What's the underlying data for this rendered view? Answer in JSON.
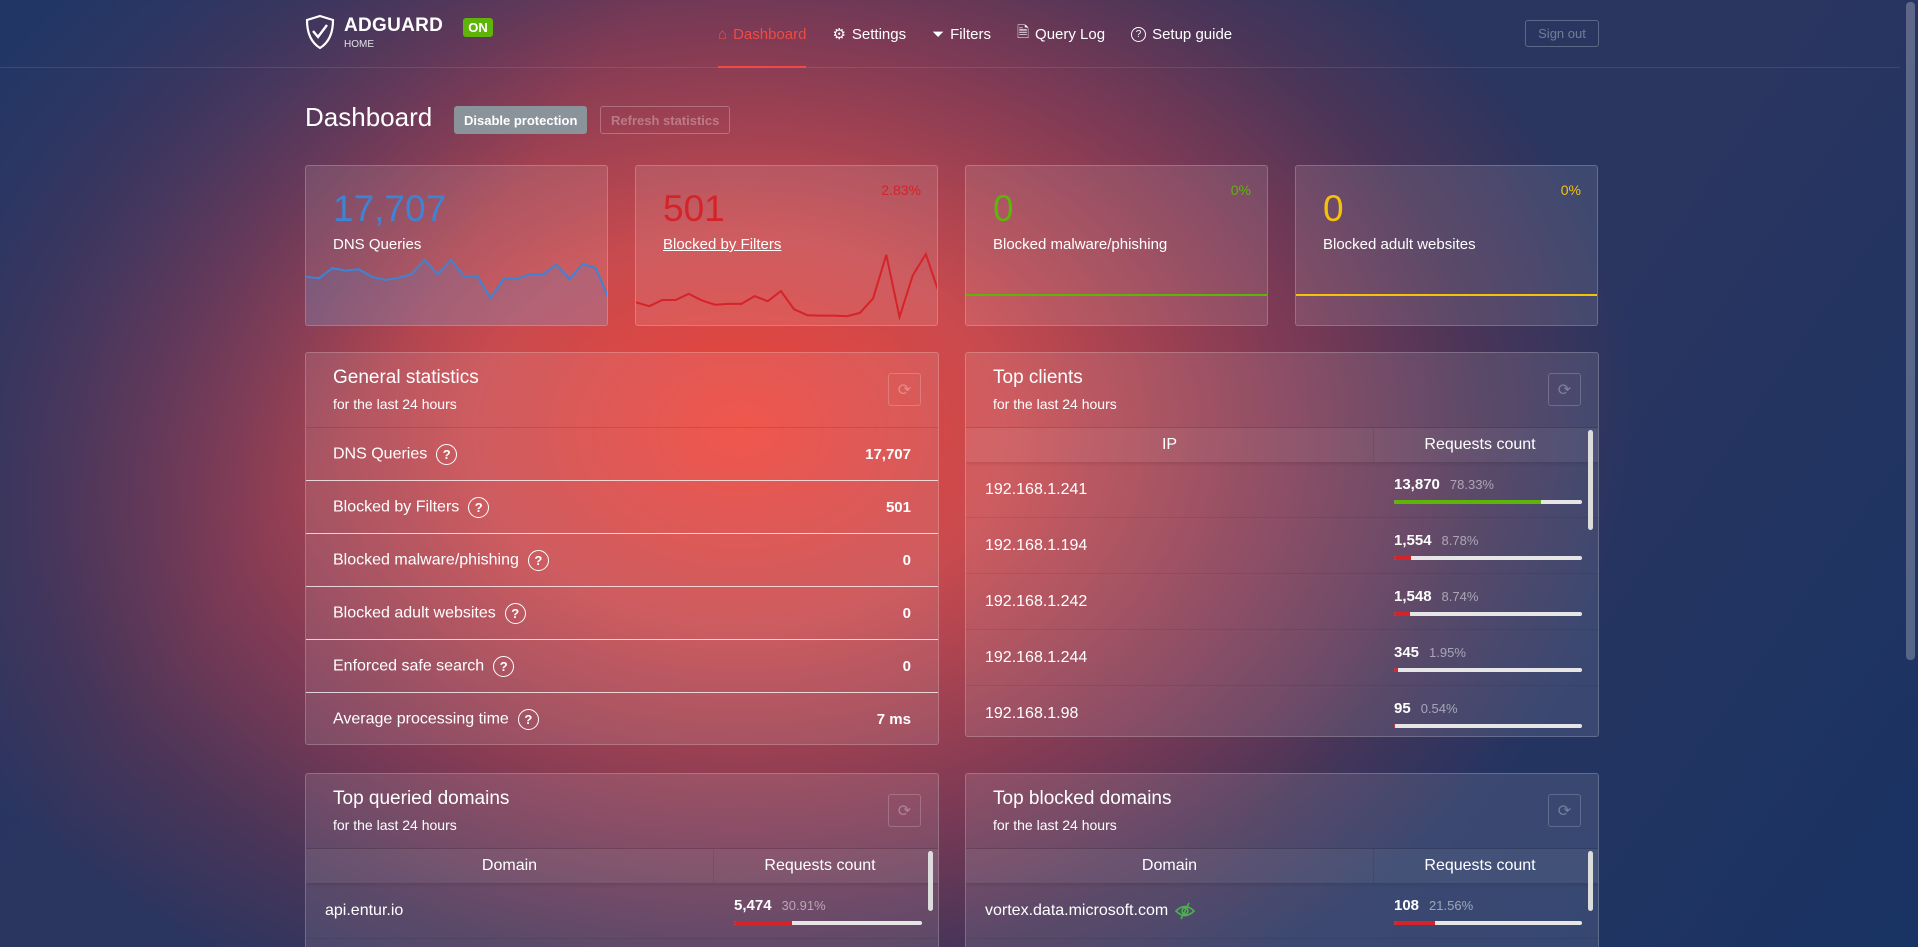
{
  "header": {
    "brand": "ADGUARD",
    "brand_sub": "HOME",
    "status": "ON",
    "nav": [
      {
        "label": "Dashboard",
        "icon": "home-icon",
        "active": true
      },
      {
        "label": "Settings",
        "icon": "gear-icon"
      },
      {
        "label": "Filters",
        "icon": "filter-icon"
      },
      {
        "label": "Query Log",
        "icon": "document-icon"
      },
      {
        "label": "Setup guide",
        "icon": "help-circle-icon"
      }
    ],
    "sign_out": "Sign out"
  },
  "page": {
    "title": "Dashboard",
    "disable_protection": "Disable protection",
    "refresh_statistics": "Refresh statistics"
  },
  "colors": {
    "blue": "#3d84d6",
    "red": "#d5232a",
    "green": "#5fb40a",
    "yellow": "#f5c20b",
    "nav_active": "#ef4a45"
  },
  "stat_cards": [
    {
      "value": "17,707",
      "label": "DNS Queries",
      "percent": "",
      "color": "#3d84d6"
    },
    {
      "value": "501",
      "label": "Blocked by Filters",
      "percent": "2.83%",
      "color": "#d5232a"
    },
    {
      "value": "0",
      "label": "Blocked malware/phishing",
      "percent": "0%",
      "color": "#5fb40a"
    },
    {
      "value": "0",
      "label": "Blocked adult websites",
      "percent": "0%",
      "color": "#f5c20b"
    }
  ],
  "chart_data": [
    {
      "type": "area",
      "values": [
        123,
        119,
        147,
        140,
        144,
        123,
        114,
        120,
        130,
        170,
        130,
        170,
        124,
        126,
        64,
        117,
        117,
        130,
        130,
        157,
        117,
        159,
        147,
        60
      ]
    },
    {
      "type": "line",
      "values": [
        48,
        38,
        54,
        54,
        70,
        53,
        42,
        44,
        44,
        64,
        51,
        77,
        30,
        15,
        14,
        14,
        12,
        21,
        58,
        170,
        10,
        117,
        172,
        72
      ]
    },
    {
      "type": "line",
      "values": [
        0,
        0,
        0,
        0,
        0,
        0,
        0,
        0,
        0,
        0,
        0,
        0,
        0,
        0,
        0,
        0,
        0,
        0,
        0,
        0,
        0,
        0,
        0,
        0
      ]
    },
    {
      "type": "line",
      "values": [
        0,
        0,
        0,
        0,
        0,
        0,
        0,
        0,
        0,
        0,
        0,
        0,
        0,
        0,
        0,
        0,
        0,
        0,
        0,
        0,
        0,
        0,
        0,
        0
      ]
    }
  ],
  "general": {
    "title": "General statistics",
    "subtitle": "for the last 24 hours",
    "rows": [
      {
        "label": "DNS Queries",
        "value": "17,707"
      },
      {
        "label": "Blocked by Filters",
        "value": "501"
      },
      {
        "label": "Blocked malware/phishing",
        "value": "0"
      },
      {
        "label": "Blocked adult websites",
        "value": "0"
      },
      {
        "label": "Enforced safe search",
        "value": "0"
      },
      {
        "label": "Average processing time",
        "value": "7 ms"
      }
    ]
  },
  "clients": {
    "title": "Top clients",
    "subtitle": "for the last 24 hours",
    "col1": "IP",
    "col2": "Requests count",
    "rows": [
      {
        "name": "192.168.1.241",
        "count": "13,870",
        "percent": "78.33%",
        "fill": 78.33,
        "color": "#5fb40a"
      },
      {
        "name": "192.168.1.194",
        "count": "1,554",
        "percent": "8.78%",
        "fill": 8.78,
        "color": "#d5232a"
      },
      {
        "name": "192.168.1.242",
        "count": "1,548",
        "percent": "8.74%",
        "fill": 8.74,
        "color": "#d5232a"
      },
      {
        "name": "192.168.1.244",
        "count": "345",
        "percent": "1.95%",
        "fill": 1.95,
        "color": "#d5232a"
      },
      {
        "name": "192.168.1.98",
        "count": "95",
        "percent": "0.54%",
        "fill": 0.54,
        "color": "#d5232a"
      }
    ]
  },
  "queried": {
    "title": "Top queried domains",
    "subtitle": "for the last 24 hours",
    "col1": "Domain",
    "col2": "Requests count",
    "rows": [
      {
        "name": "api.entur.io",
        "count": "5,474",
        "percent": "30.91%",
        "fill": 30.91,
        "color": "#d5232a"
      }
    ]
  },
  "blocked": {
    "title": "Top blocked domains",
    "subtitle": "for the last 24 hours",
    "col1": "Domain",
    "col2": "Requests count",
    "rows": [
      {
        "name": "vortex.data.microsoft.com",
        "count": "108",
        "percent": "21.56%",
        "fill": 21.56,
        "color": "#d5232a",
        "icon": "eye-off-icon"
      }
    ]
  }
}
